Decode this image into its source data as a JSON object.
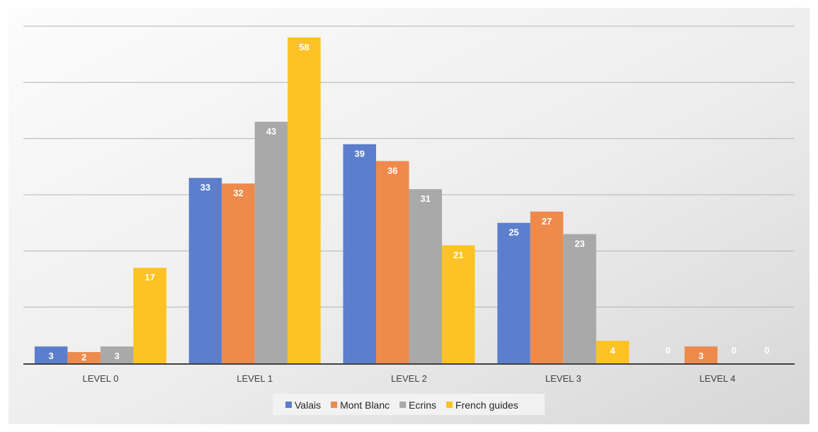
{
  "chart_data": {
    "type": "bar",
    "title": "",
    "xlabel": "",
    "ylabel": "",
    "categories": [
      "LEVEL 0",
      "LEVEL 1",
      "LEVEL 2",
      "LEVEL 3",
      "LEVEL 4"
    ],
    "series": [
      {
        "name": "Valais",
        "color": "#5b7fcc",
        "values": [
          3,
          33,
          39,
          25,
          0
        ]
      },
      {
        "name": "Mont Blanc",
        "color": "#ed8a4c",
        "values": [
          2,
          32,
          36,
          27,
          3
        ]
      },
      {
        "name": "Ecrins",
        "color": "#a9a9a9",
        "values": [
          3,
          43,
          31,
          23,
          0
        ]
      },
      {
        "name": "French guides",
        "color": "#fdc224",
        "values": [
          17,
          58,
          21,
          4,
          0
        ]
      }
    ],
    "ylim": [
      0,
      60
    ],
    "y_gridlines": [
      0,
      10,
      20,
      30,
      40,
      50,
      60
    ],
    "y_tick_labels_shown": false,
    "grid": true,
    "legend_position": "bottom",
    "data_labels": true
  }
}
